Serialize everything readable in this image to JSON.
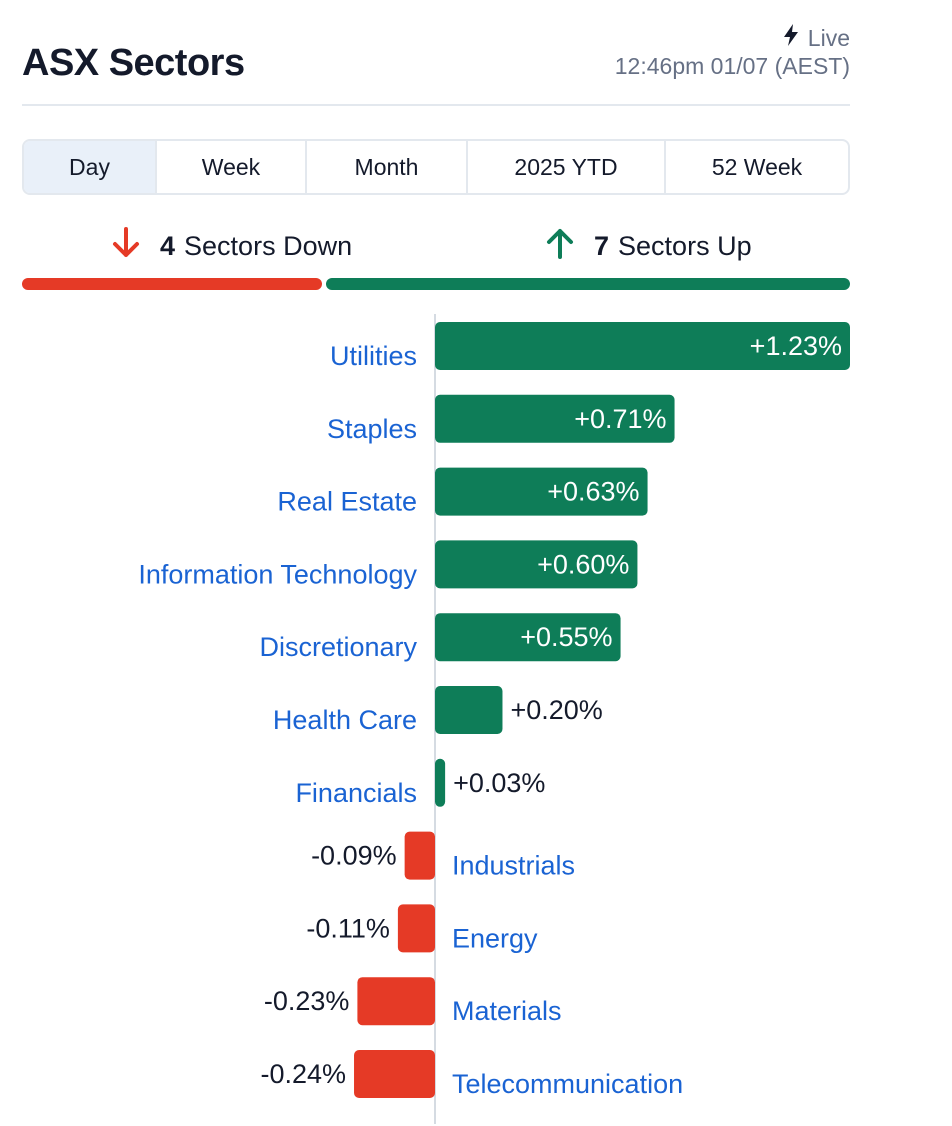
{
  "header": {
    "title": "ASX Sectors",
    "live_label": "Live",
    "timestamp": "12:46pm 01/07 (AEST)"
  },
  "tabs": [
    {
      "label": "Day",
      "active": true
    },
    {
      "label": "Week",
      "active": false
    },
    {
      "label": "Month",
      "active": false
    },
    {
      "label": "2025 YTD",
      "active": false
    },
    {
      "label": "52 Week",
      "active": false
    }
  ],
  "summary": {
    "down_count": "4",
    "down_label": "Sectors Down",
    "up_count": "7",
    "up_label": "Sectors Up"
  },
  "colors": {
    "up": "#0e7d58",
    "down": "#e53a26",
    "link": "#1a63d3",
    "active_tab": "#e9f0f9"
  },
  "chart_data": {
    "type": "bar",
    "orientation": "horizontal",
    "categories": [
      "Utilities",
      "Staples",
      "Real Estate",
      "Information Technology",
      "Discretionary",
      "Health Care",
      "Financials",
      "Industrials",
      "Energy",
      "Materials",
      "Telecommunication"
    ],
    "values": [
      1.23,
      0.71,
      0.63,
      0.6,
      0.55,
      0.2,
      0.03,
      -0.09,
      -0.11,
      -0.23,
      -0.24
    ],
    "labels": [
      "+1.23%",
      "+0.71%",
      "+0.63%",
      "+0.60%",
      "+0.55%",
      "+0.20%",
      "+0.03%",
      "-0.09%",
      "-0.11%",
      "-0.23%",
      "-0.24%"
    ],
    "unit": "%"
  }
}
